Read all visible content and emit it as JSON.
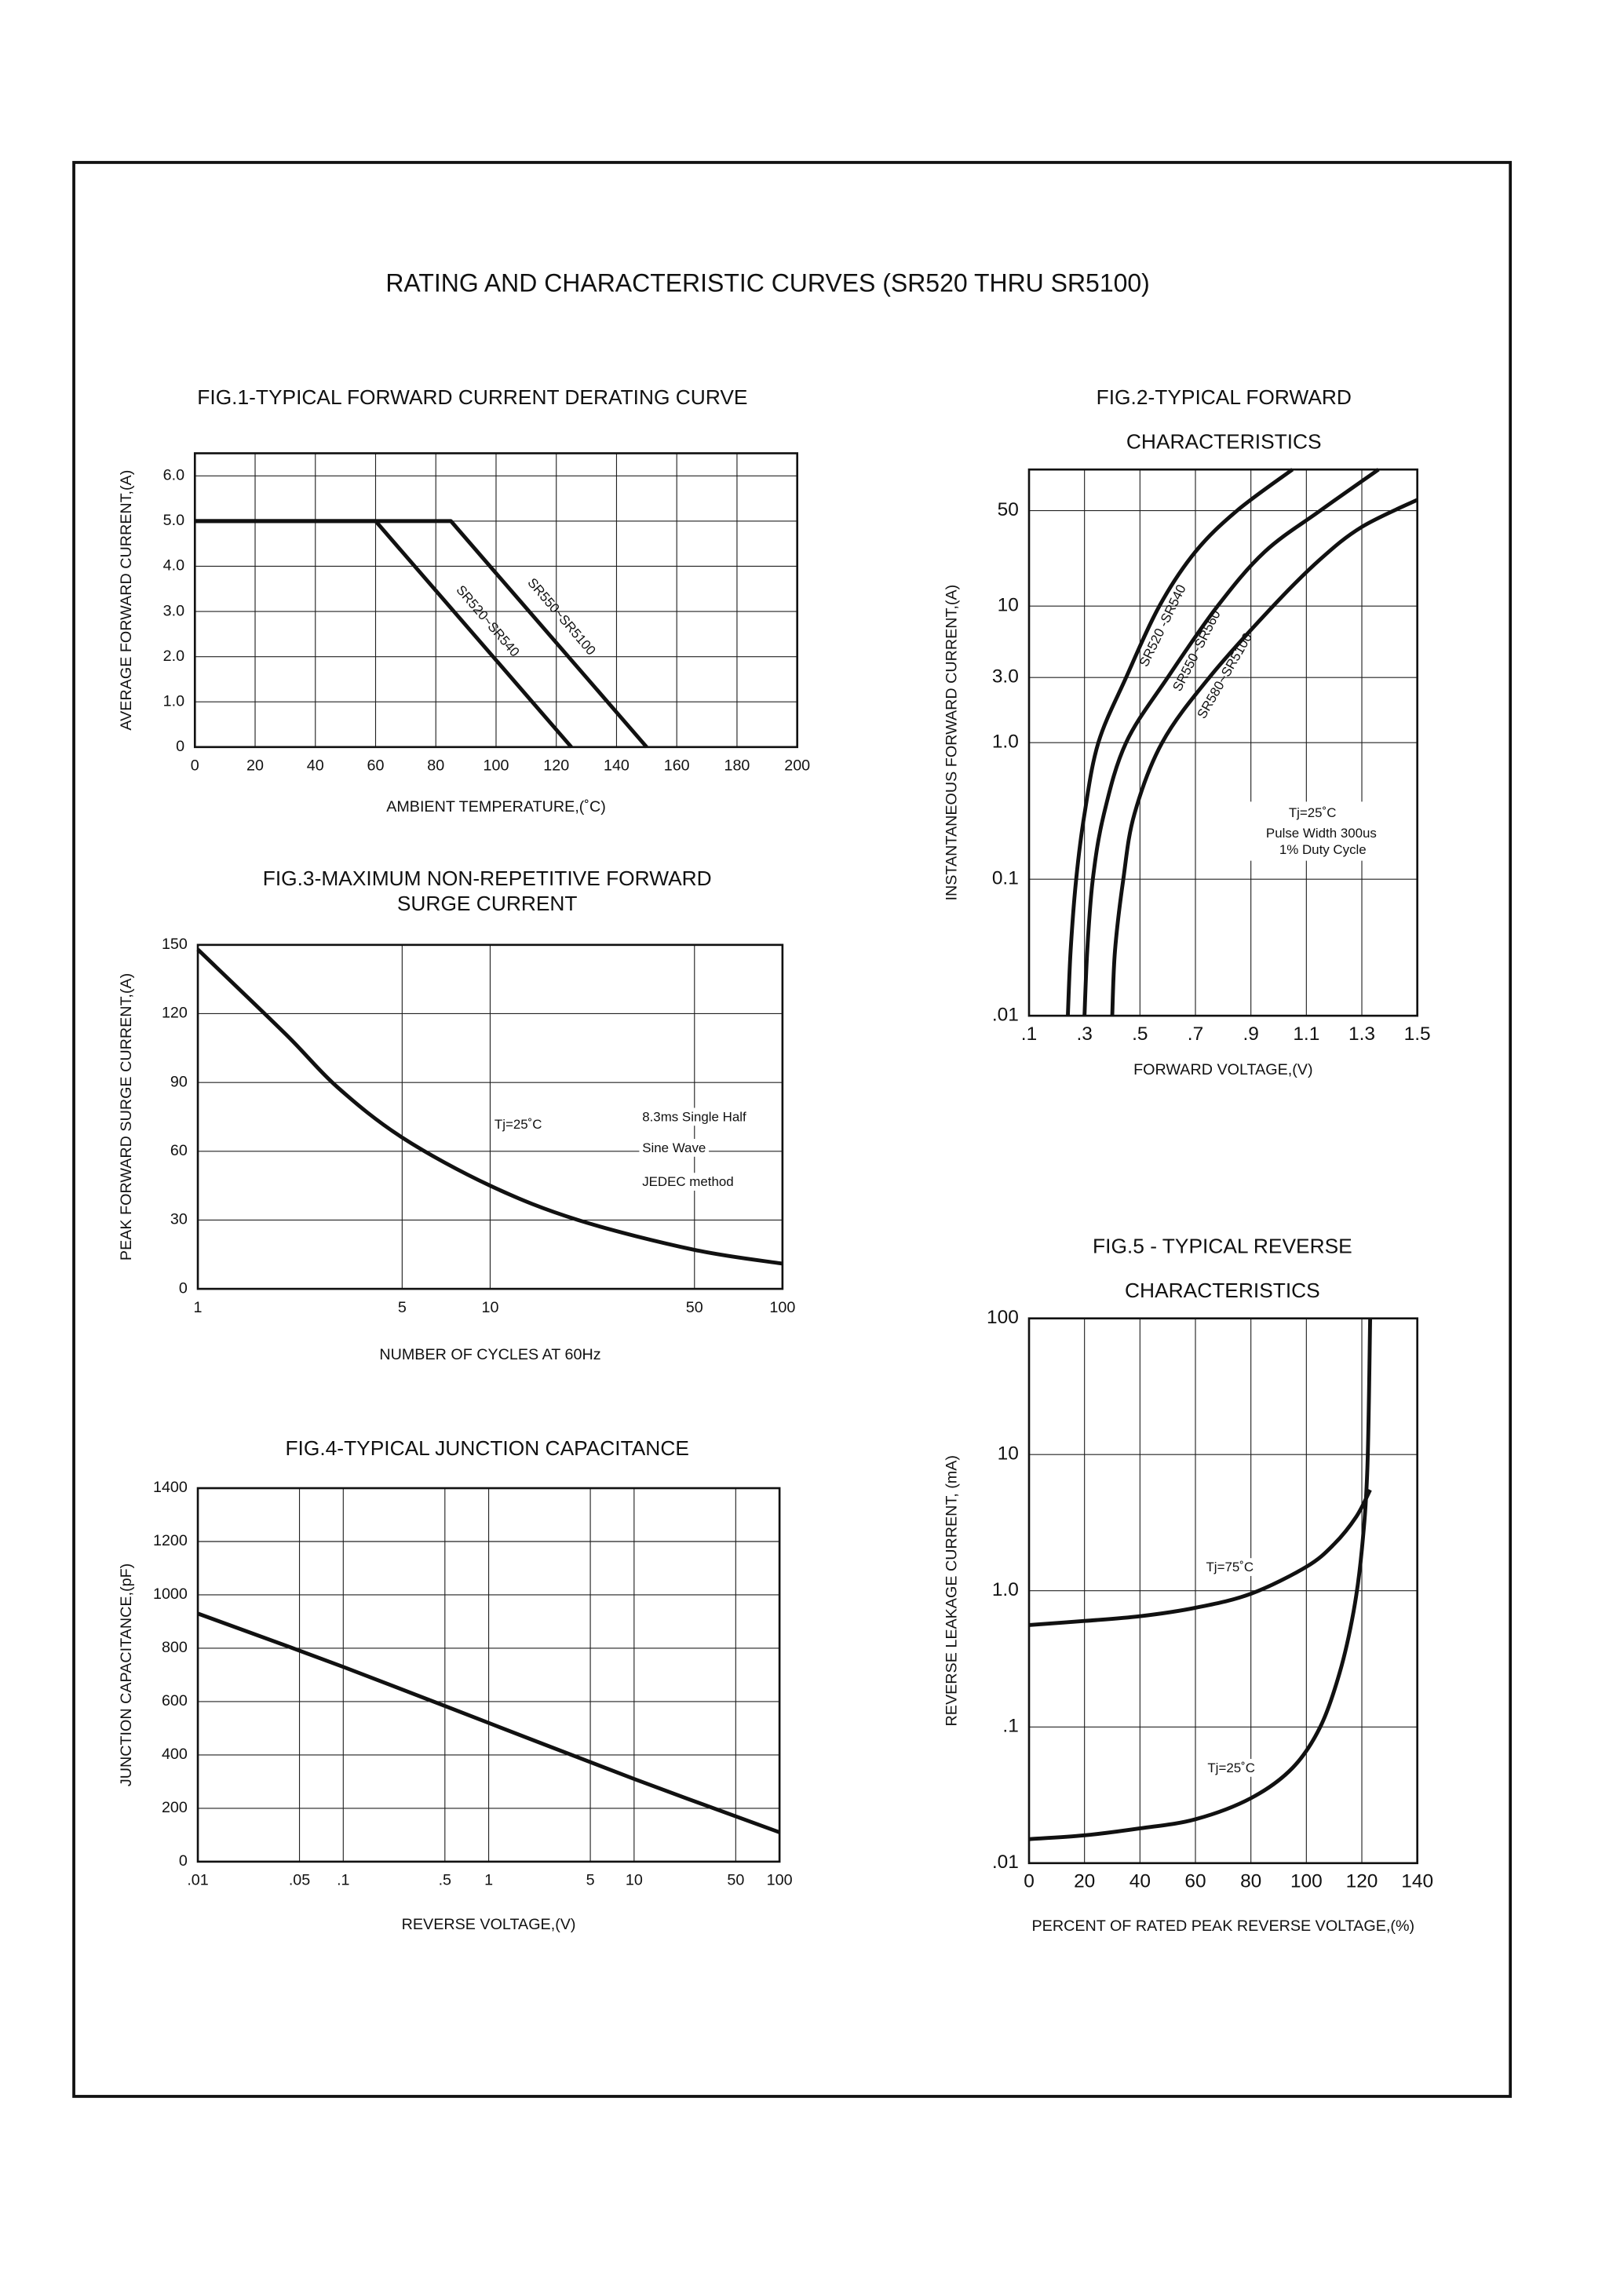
{
  "title": "RATING AND CHARACTERISTIC CURVES (SR520 THRU SR5100)",
  "chart_data": [
    {
      "type": "line",
      "title": [
        "FIG.1-TYPICAL FORWARD CURRENT DERATING CURVE"
      ],
      "x_label": "AMBIENT TEMPERATURE,(˚C)",
      "y_label": "AVERAGE FORWARD CURRENT,(A)",
      "xlim": [
        0,
        200
      ],
      "ylim": [
        0,
        6.5
      ],
      "xticks": [
        0,
        20,
        40,
        60,
        80,
        100,
        120,
        140,
        160,
        180,
        200
      ],
      "yticks": [
        0,
        {
          "value": 1,
          "label": "1.0"
        },
        {
          "value": 2,
          "label": "2.0"
        },
        {
          "value": 3,
          "label": "3.0"
        },
        {
          "value": 4,
          "label": "4.0"
        },
        {
          "value": 5,
          "label": "5.0"
        },
        {
          "value": 6,
          "label": "6.0"
        }
      ],
      "grid": true,
      "series": [
        {
          "name": "SR520~SR540",
          "color": "#111111",
          "x": [
            0,
            60,
            125
          ],
          "values": [
            5,
            5,
            0
          ]
        },
        {
          "name": "SR550~SR5100",
          "color": "#111111",
          "x": [
            0,
            85,
            150
          ],
          "values": [
            5,
            5,
            0
          ]
        }
      ]
    },
    {
      "type": "line",
      "title": [
        "FIG.2-TYPICAL FORWARD",
        "CHARACTERISTICS"
      ],
      "x_label": "FORWARD VOLTAGE,(V)",
      "y_label": "INSTANTANEOUS FORWARD CURRENT,(A)",
      "xlim": [
        0.1,
        1.5
      ],
      "ylim": [
        0.01,
        100
      ],
      "ylog": true,
      "xticks": [
        {
          "value": 0.1,
          "label": ".1"
        },
        {
          "value": 0.3,
          "label": ".3"
        },
        {
          "value": 0.5,
          "label": ".5"
        },
        {
          "value": 0.7,
          "label": ".7"
        },
        {
          "value": 0.9,
          "label": ".9"
        },
        1.1,
        1.3,
        1.5
      ],
      "yticks": [
        {
          "value": 0.01,
          "label": ".01"
        },
        0.1,
        {
          "value": 1,
          "label": "1.0"
        },
        {
          "value": 3,
          "label": "3.0"
        },
        10,
        50
      ],
      "grid": true,
      "annotations": [
        "Tj=25˚C",
        "Pulse Width 300us",
        "1% Duty Cycle"
      ],
      "series": [
        {
          "name": "SR520 -SR540",
          "color": "#111111",
          "x": [
            0.24,
            0.25,
            0.27,
            0.3,
            0.35,
            0.45,
            0.57,
            0.7,
            0.85,
            1.05
          ],
          "values": [
            0.01,
            0.03,
            0.1,
            0.3,
            1,
            3,
            10,
            25,
            50,
            100
          ]
        },
        {
          "name": "SR550~SR560",
          "color": "#111111",
          "x": [
            0.3,
            0.31,
            0.33,
            0.37,
            0.45,
            0.6,
            0.78,
            0.95,
            1.15,
            1.36
          ],
          "values": [
            0.01,
            0.03,
            0.1,
            0.3,
            1,
            3,
            10,
            25,
            50,
            100
          ]
        },
        {
          "name": "SR580~SR5100",
          "color": "#111111",
          "x": [
            0.4,
            0.41,
            0.44,
            0.48,
            0.58,
            0.75,
            0.98,
            1.15,
            1.3,
            1.5
          ],
          "values": [
            0.01,
            0.03,
            0.1,
            0.3,
            1,
            3,
            10,
            22,
            38,
            60
          ]
        }
      ]
    },
    {
      "type": "line",
      "title": [
        "FIG.3-MAXIMUM NON-REPETITIVE FORWARD",
        "SURGE CURRENT"
      ],
      "x_label": "NUMBER OF CYCLES AT 60Hz",
      "y_label": "PEAK FORWARD SURGE CURRENT,(A)",
      "xlim": [
        1,
        100
      ],
      "ylim": [
        0,
        150
      ],
      "xlog": true,
      "xticks": [
        1,
        5,
        10,
        50,
        100
      ],
      "yticks": [
        0,
        30,
        60,
        90,
        120,
        150
      ],
      "grid": true,
      "annotations": [
        "Tj=25˚C",
        "8.3ms Single Half",
        "Sine Wave",
        "JEDEC method"
      ],
      "series": [
        {
          "color": "#111111",
          "x": [
            1,
            2,
            3,
            5,
            10,
            20,
            50,
            100
          ],
          "values": [
            148,
            111,
            88,
            66,
            45,
            30,
            17,
            11
          ]
        }
      ]
    },
    {
      "type": "line",
      "title": [
        "FIG.4-TYPICAL JUNCTION CAPACITANCE"
      ],
      "x_label": "REVERSE VOLTAGE,(V)",
      "y_label": "JUNCTION CAPACITANCE,(pF)",
      "xlim": [
        0.01,
        100
      ],
      "ylim": [
        0,
        1400
      ],
      "xlog": true,
      "xticks": [
        {
          "value": 0.01,
          "label": ".01"
        },
        {
          "value": 0.05,
          "label": ".05"
        },
        {
          "value": 0.1,
          "label": ".1"
        },
        {
          "value": 0.5,
          "label": ".5"
        },
        1,
        5,
        10,
        50,
        100
      ],
      "yticks": [
        0,
        200,
        400,
        600,
        800,
        1000,
        1200,
        1400
      ],
      "grid": true,
      "series": [
        {
          "color": "#111111",
          "x": [
            0.01,
            0.1,
            1,
            10,
            100
          ],
          "values": [
            930,
            730,
            520,
            310,
            110
          ]
        }
      ]
    },
    {
      "type": "line",
      "title": [
        "FIG.5 - TYPICAL REVERSE",
        "CHARACTERISTICS"
      ],
      "x_label": "PERCENT OF RATED PEAK REVERSE VOLTAGE,(%)",
      "y_label": "REVERSE LEAKAGE CURRENT, (mA)",
      "xlim": [
        0,
        140
      ],
      "ylim": [
        0.01,
        100
      ],
      "ylog": true,
      "xticks": [
        0,
        20,
        40,
        60,
        80,
        100,
        120,
        140
      ],
      "yticks": [
        {
          "value": 0.01,
          "label": ".01"
        },
        {
          "value": 0.1,
          "label": ".1"
        },
        {
          "value": 1,
          "label": "1.0"
        },
        10,
        100
      ],
      "grid": true,
      "series": [
        {
          "name": "Tj=75˚C",
          "color": "#111111",
          "x": [
            0,
            20,
            40,
            60,
            80,
            100,
            110,
            118,
            123
          ],
          "values": [
            0.56,
            0.6,
            0.65,
            0.75,
            0.95,
            1.5,
            2.2,
            3.5,
            5.5
          ]
        },
        {
          "name": "Tj=25˚C",
          "color": "#111111",
          "x": [
            0,
            20,
            40,
            60,
            80,
            95,
            105,
            112,
            117,
            120,
            122,
            123
          ],
          "values": [
            0.015,
            0.016,
            0.018,
            0.021,
            0.03,
            0.05,
            0.1,
            0.25,
            0.7,
            2,
            8,
            100
          ]
        }
      ]
    }
  ]
}
